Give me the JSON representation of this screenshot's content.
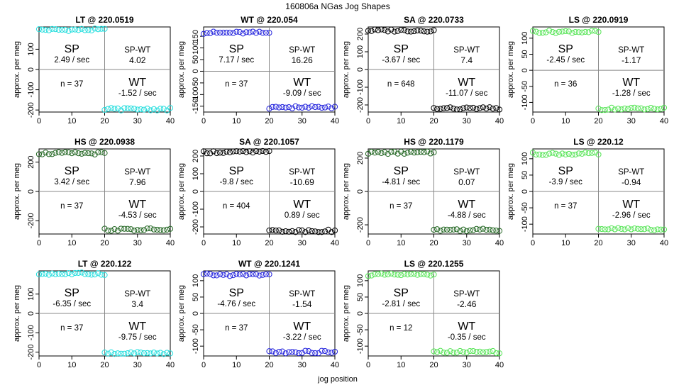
{
  "suptitle": "160806a   NGas Jog Shapes",
  "xlabel": "jog position",
  "colors": {
    "cyan": "#22dddd",
    "blue": "#2222dd",
    "black": "#000000",
    "green": "#22aa22",
    "darkgreen": "#226622",
    "lightgreen": "#55e455",
    "axis": "#000000",
    "divider": "#888888"
  },
  "chart_data": [
    {
      "type": "scatter",
      "title": "LT @ 220.0519",
      "ylabel": "approx. per meg",
      "color": "#22dddd",
      "xlim": [
        0,
        40
      ],
      "ylim": [
        -210,
        210
      ],
      "xticks": [
        0,
        10,
        20,
        30,
        40
      ],
      "yticks": [
        -200,
        -100,
        0,
        100
      ],
      "sp_value": 196,
      "wt_value": -196,
      "sp_rate": "2.49 / sec",
      "sp_wt": "4.02",
      "n": "n = 37",
      "wt_rate": "-1.52 / sec"
    },
    {
      "type": "scatter",
      "title": "WT @ 220.054",
      "ylabel": "approx. per meg",
      "color": "#2222dd",
      "xlim": [
        0,
        40
      ],
      "ylim": [
        -175,
        190
      ],
      "xticks": [
        0,
        10,
        20,
        30,
        40
      ],
      "yticks": [
        -150,
        -100,
        -50,
        0,
        50,
        100,
        150
      ],
      "sp_value": 165,
      "wt_value": -155,
      "sp_rate": "7.17 / sec",
      "sp_wt": "16.26",
      "n": "n = 37",
      "wt_rate": "-9.09 / sec"
    },
    {
      "type": "scatter",
      "title": "SA @ 220.0733",
      "ylabel": "approx. per meg",
      "color": "#000000",
      "xlim": [
        0,
        40
      ],
      "ylim": [
        -240,
        240
      ],
      "xticks": [
        0,
        10,
        20,
        30,
        40
      ],
      "yticks": [
        -200,
        -100,
        0,
        100,
        200
      ],
      "sp_value": 220,
      "wt_value": -220,
      "sp_rate": "-3.67 / sec",
      "sp_wt": "7.4",
      "n": "n = 648",
      "wt_rate": "-11.07 / sec"
    },
    {
      "type": "scatter",
      "title": "LS @ 220.0919",
      "ylabel": "approx. per meg",
      "color": "#55e455",
      "xlim": [
        0,
        40
      ],
      "ylim": [
        -130,
        135
      ],
      "xticks": [
        0,
        10,
        20,
        30,
        40
      ],
      "yticks": [
        -100,
        -50,
        0,
        50,
        100
      ],
      "sp_value": 120,
      "wt_value": -120,
      "sp_rate": "-2.45 / sec",
      "sp_wt": "-1.17",
      "n": "n = 36",
      "wt_rate": "-1.28 / sec"
    },
    {
      "type": "scatter",
      "title": "HS @ 220.0938",
      "ylabel": "approx. per meg",
      "color": "#226622",
      "xlim": [
        0,
        40
      ],
      "ylim": [
        -290,
        290
      ],
      "xticks": [
        0,
        10,
        20,
        30,
        40
      ],
      "yticks": [
        -200,
        0,
        200
      ],
      "sp_value": 260,
      "wt_value": -260,
      "sp_rate": "3.42 / sec",
      "sp_wt": "7.96",
      "n": "n = 37",
      "wt_rate": "-4.53 / sec"
    },
    {
      "type": "scatter",
      "title": "SA @ 220.1057",
      "ylabel": "approx. per meg",
      "color": "#000000",
      "xlim": [
        0,
        40
      ],
      "ylim": [
        -240,
        240
      ],
      "xticks": [
        0,
        10,
        20,
        30,
        40
      ],
      "yticks": [
        -200,
        -100,
        0,
        100,
        200
      ],
      "sp_value": 222,
      "wt_value": -222,
      "sp_rate": "-9.8 / sec",
      "sp_wt": "-10.69",
      "n": "n = 404",
      "wt_rate": "0.89 / sec"
    },
    {
      "type": "scatter",
      "title": "HS @ 220.1179",
      "ylabel": "approx. per meg",
      "color": "#226622",
      "xlim": [
        0,
        40
      ],
      "ylim": [
        -255,
        255
      ],
      "xticks": [
        0,
        10,
        20,
        30,
        40
      ],
      "yticks": [
        -200,
        0,
        200
      ],
      "sp_value": 232,
      "wt_value": -230,
      "sp_rate": "-4.81 / sec",
      "sp_wt": "0.07",
      "n": "n = 37",
      "wt_rate": "-4.88 / sec"
    },
    {
      "type": "scatter",
      "title": "LS @ 220.12",
      "ylabel": "approx. per meg",
      "color": "#55e455",
      "xlim": [
        0,
        40
      ],
      "ylim": [
        -130,
        130
      ],
      "xticks": [
        0,
        10,
        20,
        30,
        40
      ],
      "yticks": [
        -100,
        -50,
        0,
        50,
        100
      ],
      "sp_value": 115,
      "wt_value": -115,
      "sp_rate": "-3.9 / sec",
      "sp_wt": "-0.94",
      "n": "n = 37",
      "wt_rate": "-2.96 / sec"
    },
    {
      "type": "scatter",
      "title": "LT @ 220.122",
      "ylabel": "approx. per meg",
      "color": "#22dddd",
      "xlim": [
        0,
        40
      ],
      "ylim": [
        -220,
        220
      ],
      "xticks": [
        0,
        10,
        20,
        30,
        40
      ],
      "yticks": [
        -200,
        -100,
        0,
        100
      ],
      "sp_value": 205,
      "wt_value": -205,
      "sp_rate": "-6.35 / sec",
      "sp_wt": "3.4",
      "n": "n = 37",
      "wt_rate": "-9.75 / sec"
    },
    {
      "type": "scatter",
      "title": "WT @ 220.1241",
      "ylabel": "approx. per meg",
      "color": "#2222dd",
      "xlim": [
        0,
        40
      ],
      "ylim": [
        -130,
        130
      ],
      "xticks": [
        0,
        10,
        20,
        30,
        40
      ],
      "yticks": [
        -100,
        -50,
        0,
        50,
        100
      ],
      "sp_value": 118,
      "wt_value": -118,
      "sp_rate": "-4.76 / sec",
      "sp_wt": "-1.54",
      "n": "n = 37",
      "wt_rate": "-3.22 / sec"
    },
    {
      "type": "scatter",
      "title": "LS @ 220.1255",
      "ylabel": "approx. per meg",
      "color": "#55e455",
      "xlim": [
        0,
        40
      ],
      "ylim": [
        -130,
        130
      ],
      "xticks": [
        0,
        10,
        20,
        30,
        40
      ],
      "yticks": [
        -100,
        -50,
        0,
        50,
        100
      ],
      "sp_value": 118,
      "wt_value": -118,
      "sp_rate": "-2.81 / sec",
      "sp_wt": "-2.46",
      "n": "n = 12",
      "wt_rate": "-0.35 / sec"
    }
  ],
  "labels": {
    "sp": "SP",
    "wt": "WT",
    "sp_wt_label": "SP-WT"
  }
}
